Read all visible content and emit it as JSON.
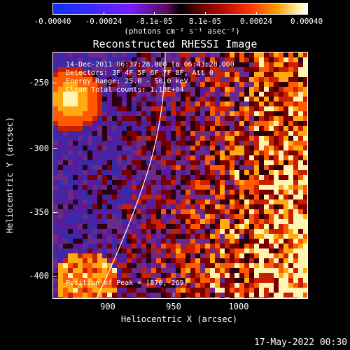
{
  "colorbar": {
    "labels": [
      "-0.00040",
      "-0.00024",
      "-8.1e-05",
      "8.1e-05",
      "0.00024",
      "0.00040"
    ],
    "units": "(photons cm⁻² s⁻¹ asec⁻²)"
  },
  "title": "Reconstructed RHESSI Image",
  "info": {
    "line1": "14-Dec-2011 06:37:28.000 to 06:43:28.000",
    "line2": "Detectors: 3F 4F 5F 6F 7F 8F, Att 0",
    "line3": "Energy Range: 25.0 - 50.0 keV",
    "line4": "Clean    Total counts: 1.13E+04",
    "peak": "Position of Peak = [870,-269]"
  },
  "axes": {
    "xlabel": "Heliocentric X (arcsec)",
    "ylabel": "Heliocentric Y (arcsec)",
    "xticks": [
      "900",
      "950",
      "1000"
    ],
    "yticks": [
      "-250",
      "-300",
      "-350",
      "-400"
    ]
  },
  "timestamp": "17-May-2022 00:30",
  "colors": {
    "background": "#000000",
    "negative": "#5a1a8a",
    "positive": "#ff3a00",
    "peak": "#ffffff"
  }
}
